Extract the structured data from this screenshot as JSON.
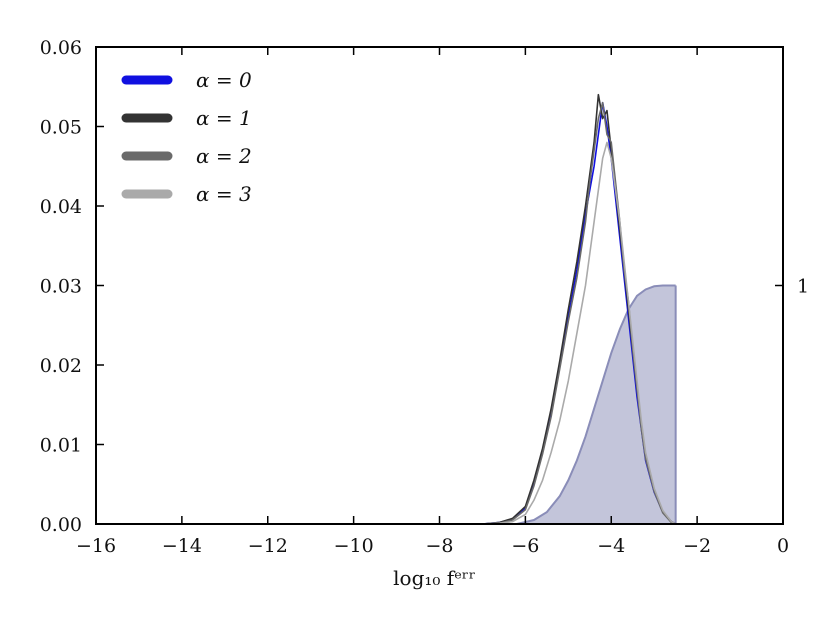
{
  "chart_data": {
    "type": "line",
    "xlabel": "log₁₀ fᵉʳʳ",
    "ylabel": "",
    "xlim": [
      -16,
      0
    ],
    "ylim": [
      0,
      0.06
    ],
    "x_ticks": [
      -16,
      -14,
      -12,
      -10,
      -8,
      -6,
      -4,
      -2,
      0
    ],
    "x_tick_labels": [
      "−16",
      "−14",
      "−12",
      "−10",
      "−8",
      "−6",
      "−4",
      "−2",
      "0"
    ],
    "y_ticks": [
      0.0,
      0.01,
      0.02,
      0.03,
      0.04,
      0.05,
      0.06
    ],
    "y_tick_labels": [
      "0.00",
      "0.01",
      "0.02",
      "0.03",
      "0.04",
      "0.05",
      "0.06"
    ],
    "right_axis": {
      "tick_value": 0.03,
      "tick_label": "1"
    },
    "legend_position": "top-left",
    "series": [
      {
        "name": "α = 0",
        "color": "#1010e0",
        "x": [
          -7.0,
          -6.6,
          -6.3,
          -6.0,
          -5.8,
          -5.6,
          -5.4,
          -5.2,
          -5.0,
          -4.8,
          -4.6,
          -4.5,
          -4.4,
          -4.3,
          -4.2,
          -4.1,
          -4.0,
          -3.9,
          -3.8,
          -3.7,
          -3.6,
          -3.5,
          -3.4,
          -3.3,
          -3.2,
          -3.0,
          -2.8,
          -2.6,
          -2.5
        ],
        "y": [
          0.0,
          0.0002,
          0.0006,
          0.002,
          0.005,
          0.009,
          0.014,
          0.02,
          0.026,
          0.032,
          0.039,
          0.042,
          0.045,
          0.049,
          0.053,
          0.05,
          0.046,
          0.041,
          0.036,
          0.031,
          0.026,
          0.021,
          0.016,
          0.012,
          0.008,
          0.004,
          0.0015,
          0.0003,
          0.0
        ]
      },
      {
        "name": "α = 1",
        "color": "#333333",
        "x": [
          -7.0,
          -6.6,
          -6.3,
          -6.0,
          -5.8,
          -5.6,
          -5.4,
          -5.2,
          -5.0,
          -4.8,
          -4.6,
          -4.5,
          -4.4,
          -4.3,
          -4.2,
          -4.1,
          -4.0,
          -3.9,
          -3.8,
          -3.7,
          -3.6,
          -3.5,
          -3.4,
          -3.3,
          -3.2,
          -3.0,
          -2.8,
          -2.6,
          -2.5
        ],
        "y": [
          0.0,
          0.0002,
          0.0007,
          0.0022,
          0.0055,
          0.0095,
          0.0145,
          0.0205,
          0.027,
          0.033,
          0.04,
          0.044,
          0.048,
          0.054,
          0.051,
          0.052,
          0.047,
          0.042,
          0.037,
          0.032,
          0.027,
          0.022,
          0.017,
          0.0125,
          0.0085,
          0.0042,
          0.0016,
          0.0003,
          0.0
        ]
      },
      {
        "name": "α = 2",
        "color": "#6a6a6a",
        "x": [
          -7.0,
          -6.6,
          -6.3,
          -6.0,
          -5.8,
          -5.6,
          -5.4,
          -5.2,
          -5.0,
          -4.8,
          -4.6,
          -4.5,
          -4.4,
          -4.3,
          -4.2,
          -4.1,
          -4.0,
          -3.9,
          -3.8,
          -3.7,
          -3.6,
          -3.5,
          -3.4,
          -3.3,
          -3.2,
          -3.0,
          -2.8,
          -2.6,
          -2.5
        ],
        "y": [
          0.0,
          0.0001,
          0.0005,
          0.0018,
          0.0048,
          0.0088,
          0.0135,
          0.0195,
          0.0255,
          0.031,
          0.038,
          0.043,
          0.047,
          0.051,
          0.053,
          0.049,
          0.048,
          0.043,
          0.038,
          0.032,
          0.028,
          0.022,
          0.017,
          0.012,
          0.0082,
          0.0041,
          0.0014,
          0.0002,
          0.0
        ]
      },
      {
        "name": "α = 3",
        "color": "#aaaaaa",
        "x": [
          -7.0,
          -6.6,
          -6.3,
          -6.0,
          -5.8,
          -5.6,
          -5.4,
          -5.2,
          -5.0,
          -4.8,
          -4.6,
          -4.5,
          -4.4,
          -4.3,
          -4.2,
          -4.1,
          -4.0,
          -3.9,
          -3.8,
          -3.7,
          -3.6,
          -3.5,
          -3.4,
          -3.3,
          -3.2,
          -3.0,
          -2.8,
          -2.6,
          -2.5
        ],
        "y": [
          0.0,
          0.0001,
          0.0003,
          0.0012,
          0.003,
          0.0055,
          0.009,
          0.013,
          0.018,
          0.024,
          0.03,
          0.034,
          0.038,
          0.042,
          0.046,
          0.048,
          0.046,
          0.042,
          0.038,
          0.033,
          0.028,
          0.023,
          0.018,
          0.013,
          0.009,
          0.0045,
          0.0017,
          0.0003,
          0.0
        ]
      }
    ],
    "cumulative": {
      "color": "#8a8db8",
      "fill_color": "#b9bbd3",
      "x": [
        -6.2,
        -5.8,
        -5.5,
        -5.2,
        -5.0,
        -4.8,
        -4.6,
        -4.4,
        -4.2,
        -4.0,
        -3.8,
        -3.6,
        -3.4,
        -3.2,
        -3.0,
        -2.8,
        -2.6,
        -2.5
      ],
      "y": [
        0.0,
        0.0005,
        0.0015,
        0.0035,
        0.0055,
        0.008,
        0.011,
        0.0145,
        0.018,
        0.0215,
        0.0245,
        0.027,
        0.0287,
        0.0295,
        0.0299,
        0.03,
        0.03,
        0.03
      ]
    }
  }
}
